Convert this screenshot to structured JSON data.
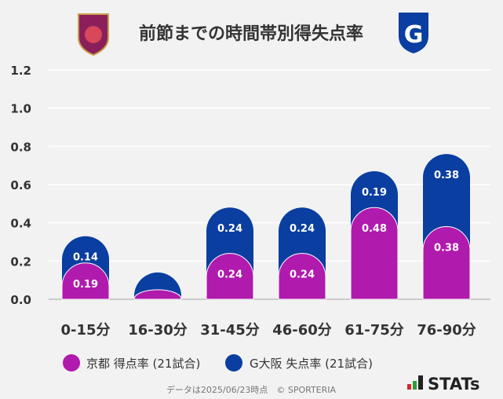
{
  "chart_data": {
    "type": "bar",
    "stacked": true,
    "title": "前節までの時間帯別得失点率",
    "categories": [
      "0-15分",
      "16-30分",
      "31-45分",
      "46-60分",
      "61-75分",
      "76-90分"
    ],
    "series": [
      {
        "name": "京都 得点率 (21試合)",
        "color": "#b01aad",
        "values": [
          0.19,
          0.05,
          0.24,
          0.24,
          0.48,
          0.38
        ],
        "labels": [
          "0.19",
          "",
          "0.24",
          "0.24",
          "0.48",
          "0.38"
        ]
      },
      {
        "name": "G大阪 失点率 (21試合)",
        "color": "#0a3ea0",
        "values": [
          0.14,
          0.09,
          0.24,
          0.24,
          0.19,
          0.38
        ],
        "labels": [
          "0.14",
          "",
          "0.24",
          "0.24",
          "0.19",
          "0.38"
        ]
      }
    ],
    "yticks": [
      "0.0",
      "0.2",
      "0.4",
      "0.6",
      "0.8",
      "1.0",
      "1.2"
    ],
    "ylim": [
      0,
      1.2
    ],
    "grid": true,
    "legend_placement": "bottom"
  },
  "logos": {
    "left": "KYOTO SANGA",
    "right": "G"
  },
  "footer": {
    "note": "データは2025/06/23時点　© SPORTERIA",
    "brand": "STATs"
  }
}
